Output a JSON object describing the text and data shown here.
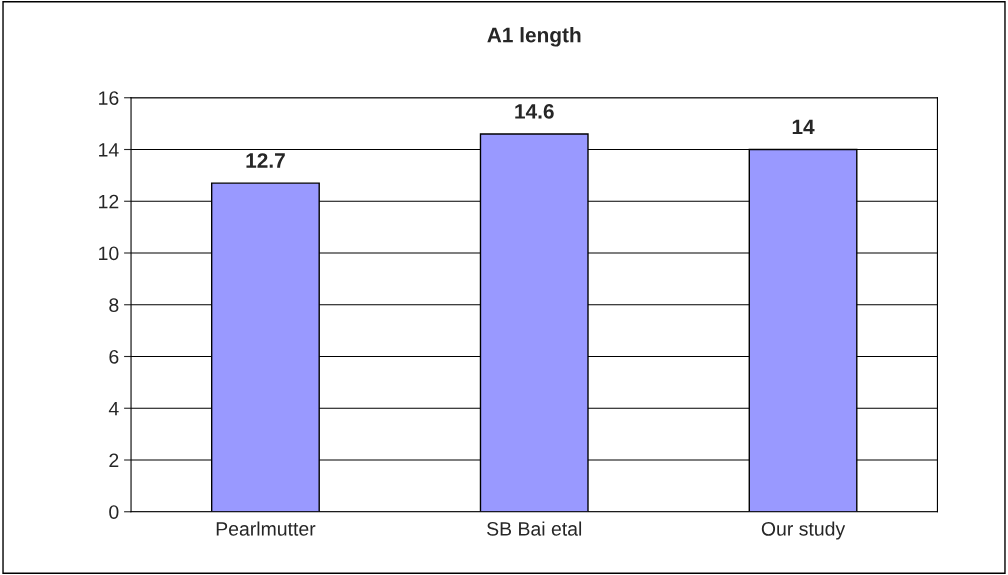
{
  "chart_data": {
    "type": "bar",
    "title": "A1 length",
    "categories": [
      "Pearlmutter",
      "SB Bai etal",
      "Our study"
    ],
    "values": [
      12.7,
      14.6,
      14
    ],
    "color": "#9999ff",
    "ylim": [
      0,
      16
    ],
    "yticks": [
      0,
      2,
      4,
      6,
      8,
      10,
      12,
      14,
      16
    ],
    "grid": "y",
    "data_labels": true,
    "legend": false
  }
}
